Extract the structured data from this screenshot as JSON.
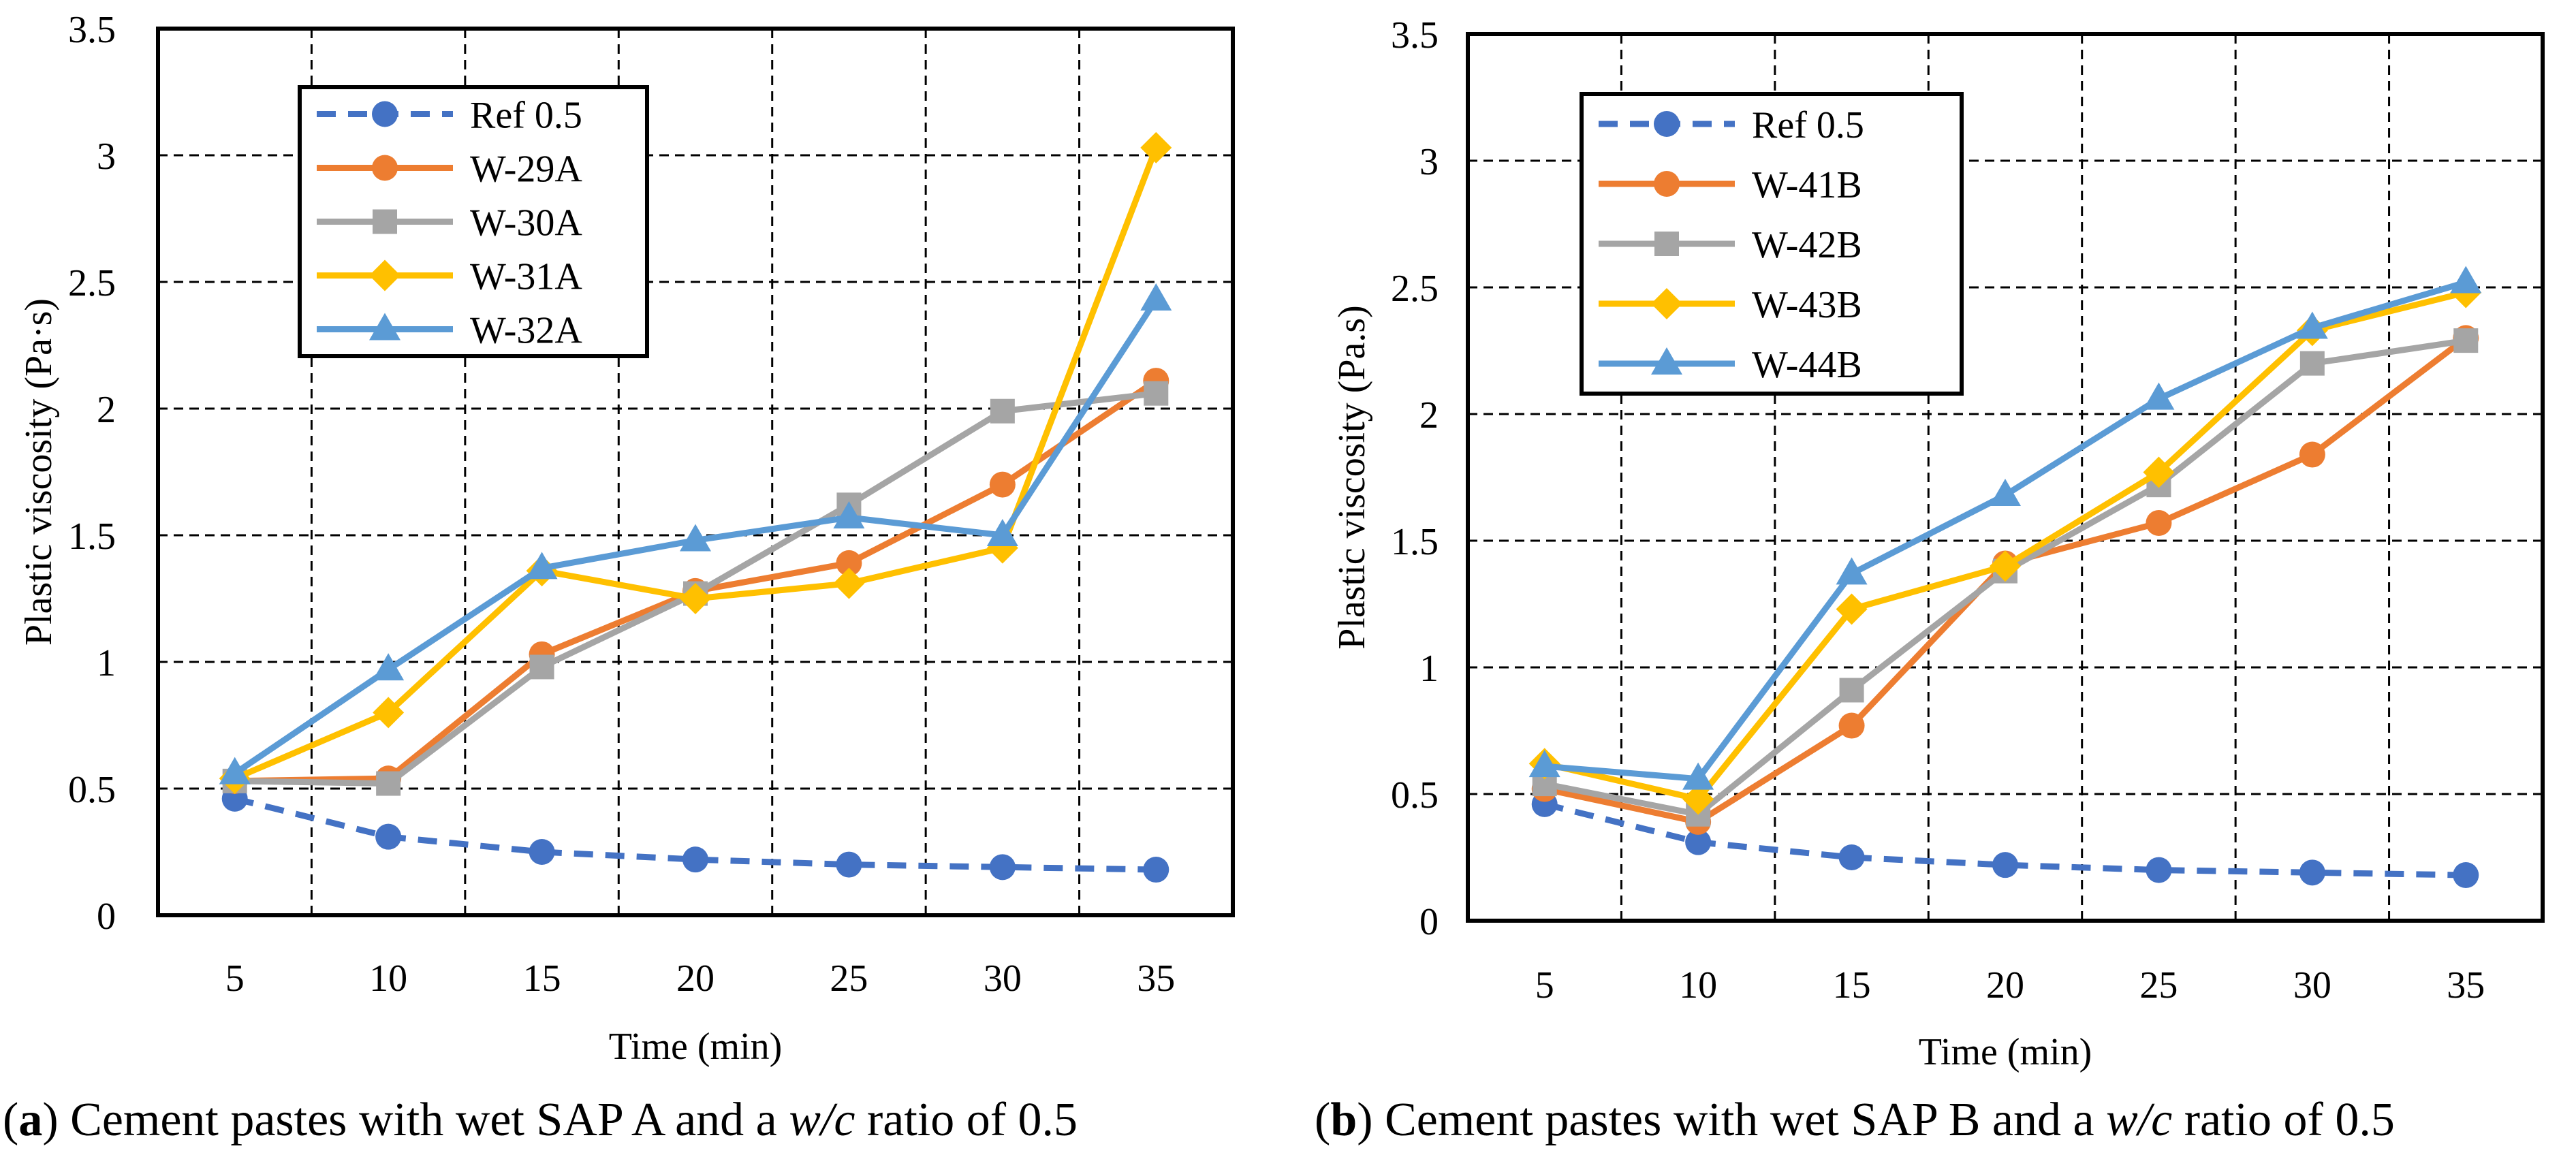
{
  "chart_data": [
    {
      "type": "line",
      "panel": "a",
      "caption": {
        "label": "a",
        "text_before": "Cement pastes with wet SAP A and a",
        "italic": "w/c",
        "text_after": "ratio of 0.5"
      },
      "xlabel": "Time (min)",
      "ylabel": "Plastic viscosity (Pa·s)",
      "categories": [
        5,
        10,
        15,
        20,
        25,
        30,
        35
      ],
      "ylim": [
        0,
        3.5
      ],
      "yticks": [
        0,
        0.5,
        1,
        1.5,
        2,
        2.5,
        3,
        3.5
      ],
      "ytick_labels": [
        "0",
        "0.5",
        "1",
        "1.5",
        "2",
        "2.5",
        "3",
        "3.5"
      ],
      "grid": true,
      "legend_position": "top-left",
      "series": [
        {
          "name": "Ref 0.5",
          "color": "#4472C4",
          "marker": "circle",
          "dashed": true,
          "values": [
            0.46,
            0.31,
            0.25,
            0.22,
            0.2,
            0.19,
            0.18
          ]
        },
        {
          "name": "W-29A",
          "color": "#ED7D31",
          "marker": "circle",
          "dashed": false,
          "values": [
            0.53,
            0.54,
            1.03,
            1.28,
            1.39,
            1.7,
            2.11
          ]
        },
        {
          "name": "W-30A",
          "color": "#A5A5A5",
          "marker": "square",
          "dashed": false,
          "values": [
            0.53,
            0.52,
            0.98,
            1.27,
            1.62,
            1.99,
            2.06
          ]
        },
        {
          "name": "W-31A",
          "color": "#FFC000",
          "marker": "diamond",
          "dashed": false,
          "values": [
            0.54,
            0.8,
            1.36,
            1.25,
            1.31,
            1.45,
            3.03
          ]
        },
        {
          "name": "W-32A",
          "color": "#5B9BD5",
          "marker": "triangle",
          "dashed": false,
          "values": [
            0.56,
            0.97,
            1.37,
            1.48,
            1.57,
            1.5,
            2.43
          ]
        }
      ]
    },
    {
      "type": "line",
      "panel": "b",
      "caption": {
        "label": "b",
        "text_before": "Cement pastes with wet SAP B and a",
        "italic": "w/c",
        "text_after": "ratio of 0.5"
      },
      "xlabel": "Time (min)",
      "ylabel": "Plastic viscosity (Pa.s)",
      "categories": [
        5,
        10,
        15,
        20,
        25,
        30,
        35
      ],
      "ylim": [
        0,
        3.5
      ],
      "yticks": [
        0,
        0.5,
        1,
        1.5,
        2,
        2.5,
        3,
        3.5
      ],
      "ytick_labels": [
        "0",
        "0.5",
        "1",
        "1.5",
        "2",
        "2.5",
        "3",
        "3.5"
      ],
      "grid": true,
      "legend_position": "top-left",
      "series": [
        {
          "name": "Ref 0.5",
          "color": "#4472C4",
          "marker": "circle",
          "dashed": true,
          "values": [
            0.46,
            0.31,
            0.25,
            0.22,
            0.2,
            0.19,
            0.18
          ]
        },
        {
          "name": "W-41B",
          "color": "#ED7D31",
          "marker": "circle",
          "dashed": false,
          "values": [
            0.52,
            0.39,
            0.77,
            1.41,
            1.57,
            1.84,
            2.3
          ]
        },
        {
          "name": "W-42B",
          "color": "#A5A5A5",
          "marker": "square",
          "dashed": false,
          "values": [
            0.54,
            0.42,
            0.91,
            1.38,
            1.72,
            2.2,
            2.29
          ]
        },
        {
          "name": "W-43B",
          "color": "#FFC000",
          "marker": "diamond",
          "dashed": false,
          "values": [
            0.62,
            0.48,
            1.23,
            1.4,
            1.77,
            2.33,
            2.48
          ]
        },
        {
          "name": "W-44B",
          "color": "#5B9BD5",
          "marker": "triangle",
          "dashed": false,
          "values": [
            0.61,
            0.56,
            1.37,
            1.68,
            2.06,
            2.34,
            2.52
          ]
        }
      ]
    }
  ]
}
